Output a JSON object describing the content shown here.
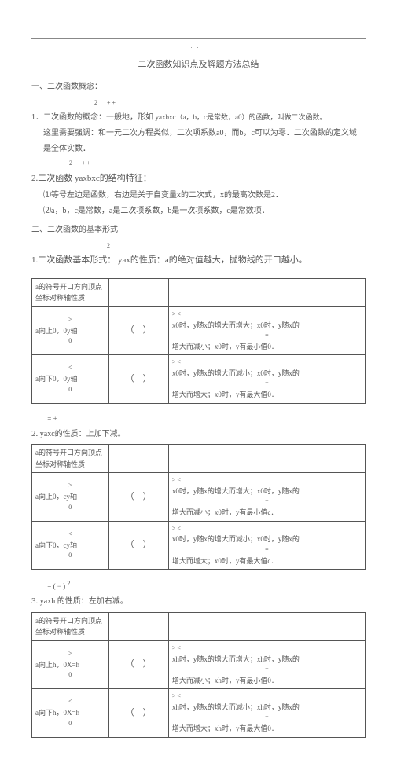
{
  "title": "二次函数知识点及解题方法总结",
  "dots_text": ". . .",
  "section1": {
    "heading": "一、二次函数概念：",
    "item1_a": "1．二次函数的概念：一般地，形如",
    "item1_sup": "2",
    "item1_plus": "+     +",
    "item1_b": "yaxbxc（a，b，c是常数，a0）的函数，叫做二次函数。",
    "item1_note1": "这里需要强调：和一元二次方程类似，二次项系数a0，而b，c可以为零．二次函数的定义域",
    "item1_note2": "是全体实数．",
    "item2_sup": "2",
    "item2_plus": "+     +",
    "item2_a": "2.二次函数              yaxbxc的结构特征：",
    "item2_sub1": "⑴等号左边是函数，右边是关于自变量x的二次式，x的最高次数是2．",
    "item2_sub2": "⑵a，b，c是常数，a是二次项系数，b是一次项系数，c是常数项．"
  },
  "section2": {
    "heading": "二、二次函数的基本形式",
    "form1_sup": "2",
    "form1_a": "1.二次函数基本形式：       yax的性质：a的绝对值越大，抛物线的开口越小。",
    "table1_header": [
      "a的符号开口方向顶点坐标对称轴性质",
      "",
      ""
    ],
    "table1_r1a": "a向上0，0y轴",
    "table1_r1a_sup": ">",
    "table1_r1a_mid": "0",
    "table1_r1c_top": ">                              <",
    "table1_r1c": "x0时，y随x的增大而增大；x0时，y随x的",
    "table1_r1c_bot": "增大而减小；x0时，y有最小值0．",
    "table1_r2a": "a向下0，0y轴",
    "table1_r2a_sup": "<",
    "table1_r2a_mid": "0",
    "table1_r2c_top": ">                              <",
    "table1_r2c": "x0时，y随x的增大而减小；x0时，y随x的",
    "table1_r2c_bot": "增大而增大；x0时，y有最大值0．",
    "paren1": "（　）",
    "paren2": "（　）",
    "note2_sup": "2",
    "note2_plus": "=     +",
    "note2_text": "yaxc的性质：上加下减。",
    "form2_label": "2.",
    "table2_header": [
      "a的符号开口方向顶点坐标对称轴性质",
      "",
      ""
    ],
    "table2_r1a_sup": ">",
    "table2_r1a": "a向上0，cy轴",
    "table2_r1a_mid": "0",
    "table2_r1c_top": ">                              <",
    "table2_r1c": "x0时，y随x的增大而增大；x0时，y随x的",
    "table2_r1c_bot": "增大而减小；x0时，y有最小值c．",
    "table2_r2a_sup": "<",
    "table2_r2a": "a向下0，cy轴",
    "table2_r2a_mid": "0",
    "table2_r2c_top": ">                              <",
    "table2_r2c": "x0时，y随x的增大而减小；x0时，y随x的",
    "table2_r2c_bot": "增大而增大；x0时，y有最大值c．",
    "paren3": "（　）",
    "paren4": "（　）",
    "note3_sup": "2",
    "note3_eq": "=   ( − )",
    "note3_text": "yaxh 的性质：左加右减。",
    "form3_label": "3.",
    "table3_header": [
      "a的符号开口方向顶点坐标对称轴性质",
      "",
      ""
    ],
    "table3_r1a_sup": ">",
    "table3_r1a": "a向上h，0X=h",
    "table3_r1a_mid": "0",
    "table3_r1c_top": ">                              <",
    "table3_r1c": "xh时，y随x的增大而增大；xh时，y随x的",
    "table3_r1c_bot": "增大而减小；xh时，y有最小值0．",
    "table3_r2a_sup": "<",
    "table3_r2a": "a向下h，0X=h",
    "table3_r2a_mid": "0",
    "table3_r2c_top": ">                              <",
    "table3_r2c": "xh时，y随x的增大而减小；xh时，y随x的",
    "table3_r2c_bot": "增大而增大；xh时，y有最大值0．",
    "paren5": "（　）",
    "paren6": "（　）"
  }
}
